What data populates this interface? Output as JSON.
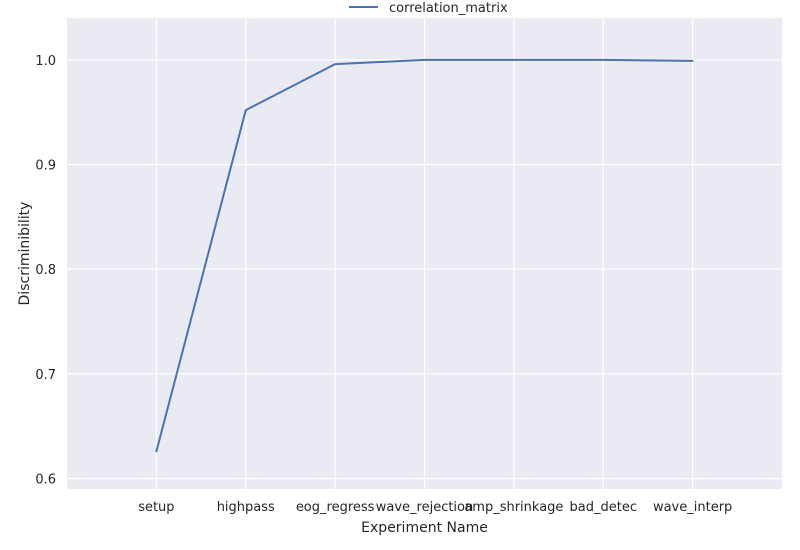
{
  "chart_data": {
    "type": "line",
    "title": "",
    "xlabel": "Experiment Name",
    "ylabel": "Discriminibility",
    "categories": [
      "setup",
      "highpass",
      "eog_regress",
      "wave_rejection",
      "amp_shrinkage",
      "bad_detec",
      "wave_interp"
    ],
    "series": [
      {
        "name": "correlation_matrix",
        "color": "#4c72b0",
        "values": [
          0.626,
          0.952,
          0.996,
          1.0,
          1.0,
          1.0,
          0.999
        ]
      }
    ],
    "ylim": [
      0.59,
      1.04
    ],
    "yticks": [
      "0.6",
      "0.7",
      "0.8",
      "0.9",
      "1.0"
    ],
    "grid": true,
    "background": "#eaeaf2",
    "legend_position": "top-center"
  }
}
